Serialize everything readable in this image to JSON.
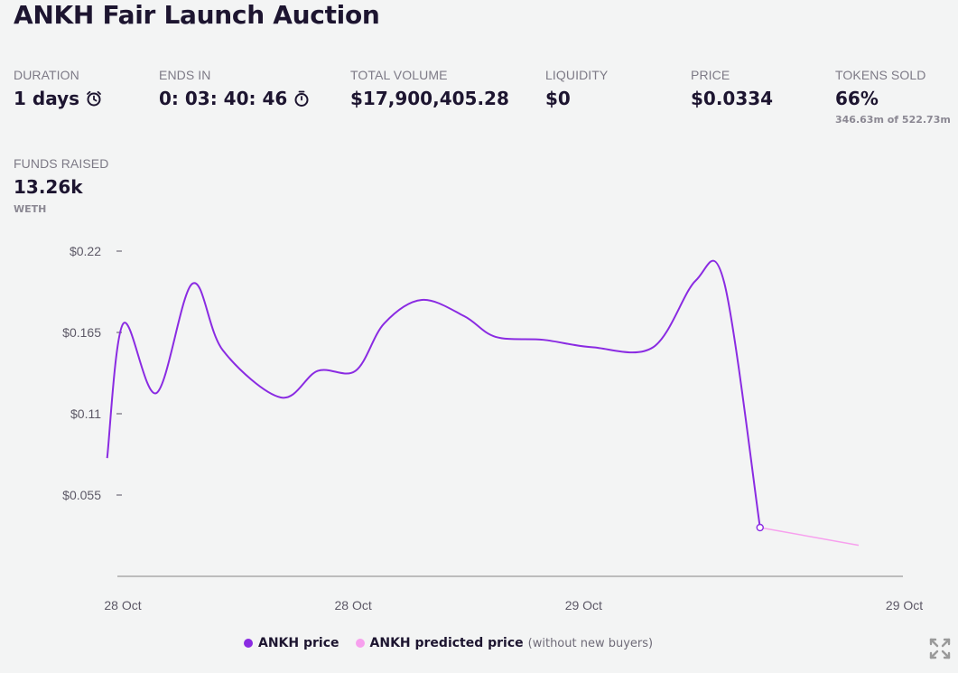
{
  "title": "ANKH Fair Launch Auction",
  "stats": {
    "duration": {
      "label": "DURATION",
      "value": "1 days",
      "icon": "alarm-clock-icon"
    },
    "ends_in": {
      "label": "ENDS IN",
      "value": "0: 03: 40: 46",
      "icon": "stopwatch-icon"
    },
    "total_volume": {
      "label": "TOTAL VOLUME",
      "value": "$17,900,405.28"
    },
    "liquidity": {
      "label": "LIQUIDITY",
      "value": "$0"
    },
    "price": {
      "label": "PRICE",
      "value": "$0.0334"
    },
    "tokens_sold": {
      "label": "TOKENS SOLD",
      "value": "66%",
      "sub": "346.63m of 522.73m"
    },
    "funds_raised": {
      "label": "FUNDS RAISED",
      "value": "13.26k",
      "unit": "WETH"
    }
  },
  "legend": {
    "price_label": "ANKH price",
    "predicted_label": "ANKH predicted price",
    "predicted_note": "(without new buyers)"
  },
  "colors": {
    "price": "#8a2be2",
    "predicted": "#f7a0ee",
    "axis": "#a9a9a9"
  },
  "chart_data": {
    "type": "line",
    "y_ticks": [
      {
        "value": 0.055,
        "label": "$0.055"
      },
      {
        "value": 0.11,
        "label": "$0.11"
      },
      {
        "value": 0.165,
        "label": "$0.165"
      },
      {
        "value": 0.22,
        "label": "$0.22"
      }
    ],
    "x_ticks": [
      {
        "t": 0.0,
        "label": "28 Oct"
      },
      {
        "t": 0.2873,
        "label": "28 Oct"
      },
      {
        "t": 0.5747,
        "label": "29 Oct"
      },
      {
        "t": 0.9747,
        "label": "29 Oct"
      }
    ],
    "ylim": [
      0,
      0.22
    ],
    "series": [
      {
        "name": "ANKH price",
        "points": [
          [
            0.0075,
            0.08
          ],
          [
            0.0276,
            0.171
          ],
          [
            0.069,
            0.124
          ],
          [
            0.1138,
            0.198
          ],
          [
            0.1517,
            0.153
          ],
          [
            0.2241,
            0.121
          ],
          [
            0.2701,
            0.139
          ],
          [
            0.3172,
            0.139
          ],
          [
            0.3529,
            0.171
          ],
          [
            0.4,
            0.187
          ],
          [
            0.4529,
            0.176
          ],
          [
            0.492,
            0.162
          ],
          [
            0.5517,
            0.16
          ],
          [
            0.6126,
            0.155
          ],
          [
            0.6885,
            0.155
          ],
          [
            0.7414,
            0.2
          ],
          [
            0.777,
            0.199
          ],
          [
            0.8218,
            0.033
          ]
        ]
      },
      {
        "name": "ANKH predicted price",
        "points": [
          [
            0.8218,
            0.033
          ],
          [
            0.9448,
            0.021
          ]
        ]
      }
    ]
  }
}
